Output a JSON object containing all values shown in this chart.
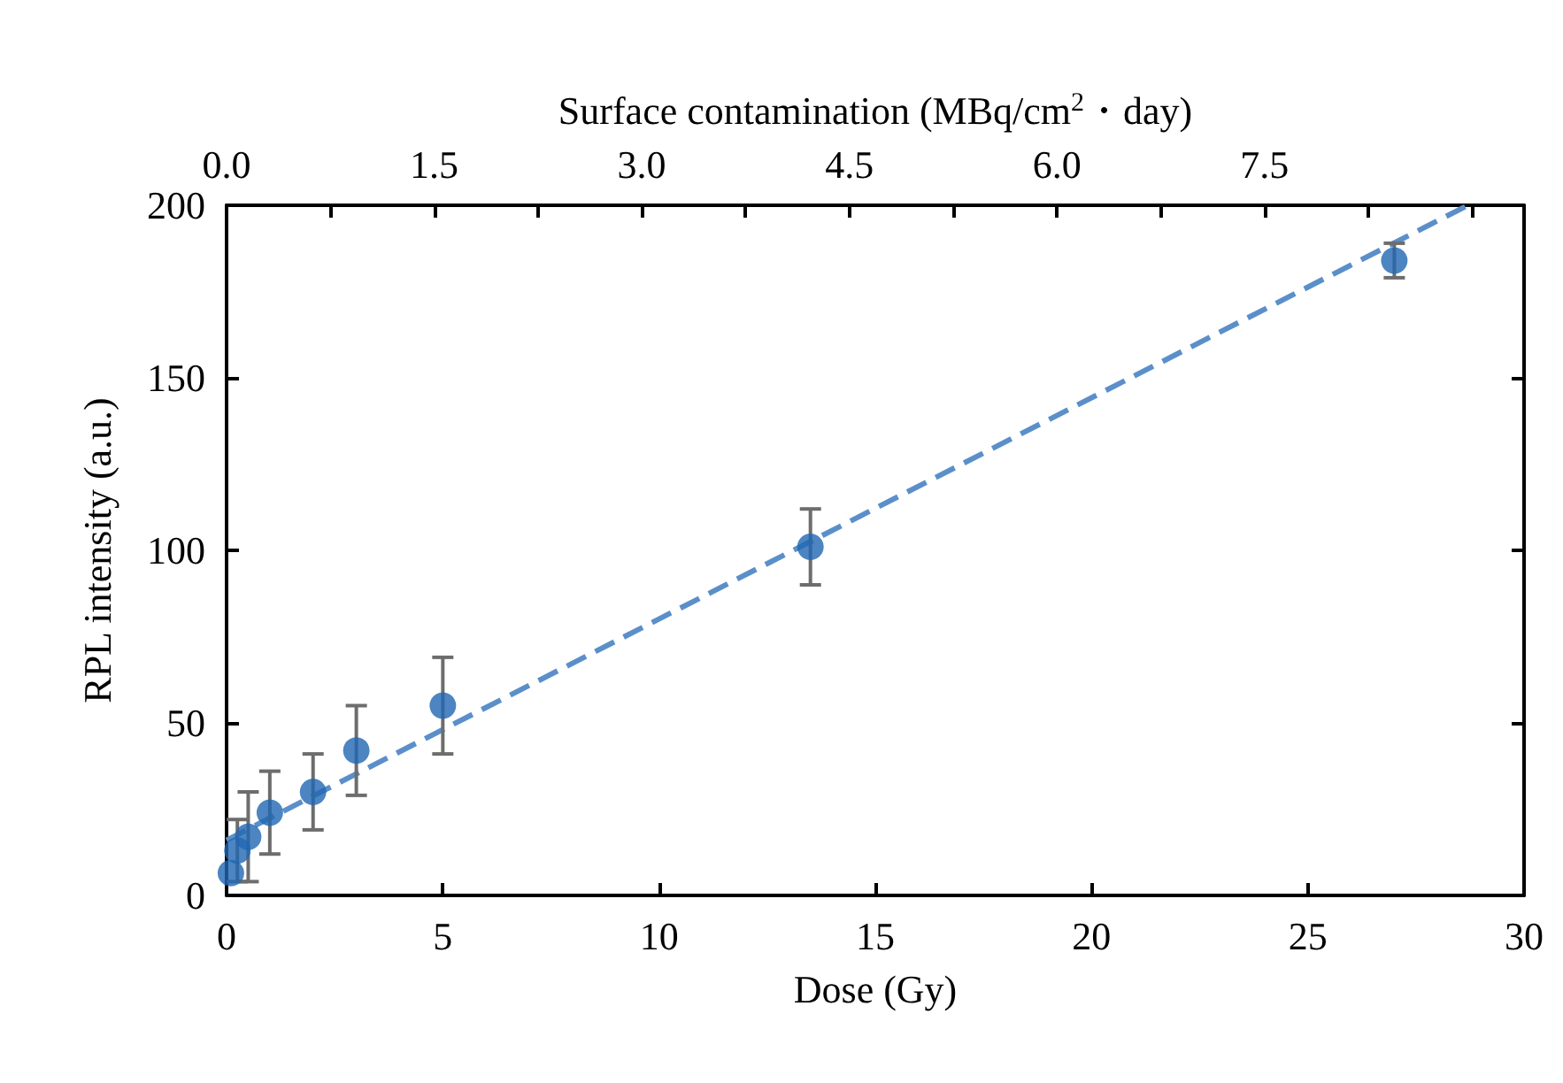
{
  "chart_data": {
    "type": "scatter",
    "xlabel": "Dose (Gy)",
    "ylabel": "RPL intensity (a.u.)",
    "x2label": "Surface contamination (MBq/cm$^{2}$・day)",
    "xlim": [
      0,
      30
    ],
    "xticks": [
      0,
      5,
      10,
      15,
      20,
      25,
      30
    ],
    "ylim": [
      0,
      200
    ],
    "yticks": [
      0,
      50,
      100,
      150,
      200
    ],
    "x2lim": [
      0,
      9.375
    ],
    "x2ticks": [
      {
        "value": 0,
        "label": "0.0"
      },
      {
        "value": 0.75,
        "label": null
      },
      1.5,
      {
        "value": 2.25,
        "label": null
      },
      {
        "value": 3,
        "label": "3.0"
      },
      {
        "value": 3.75,
        "label": null
      },
      4.5,
      {
        "value": 5.25,
        "label": null
      },
      {
        "value": 6,
        "label": "6.0"
      },
      {
        "value": 6.75,
        "label": null
      },
      7.5,
      {
        "value": 8.25,
        "label": null
      },
      {
        "value": 9,
        "label": null
      }
    ],
    "grid": false,
    "series": [
      {
        "color": "#1f67b1",
        "marker": "circle",
        "x": [
          0.1,
          0.25,
          0.5,
          1,
          2,
          3,
          5,
          13.5,
          27
        ],
        "values": [
          6.5,
          13,
          17,
          24,
          30,
          42,
          55,
          101,
          184
        ],
        "errors": [
          null,
          9,
          13,
          12,
          11,
          13,
          14,
          11,
          5
        ]
      },
      {
        "type": "line",
        "color": "#5b8fc9",
        "marker": "none",
        "line_style": "dashed",
        "x": [
          0,
          28.7
        ],
        "values": [
          16,
          200
        ]
      }
    ]
  }
}
